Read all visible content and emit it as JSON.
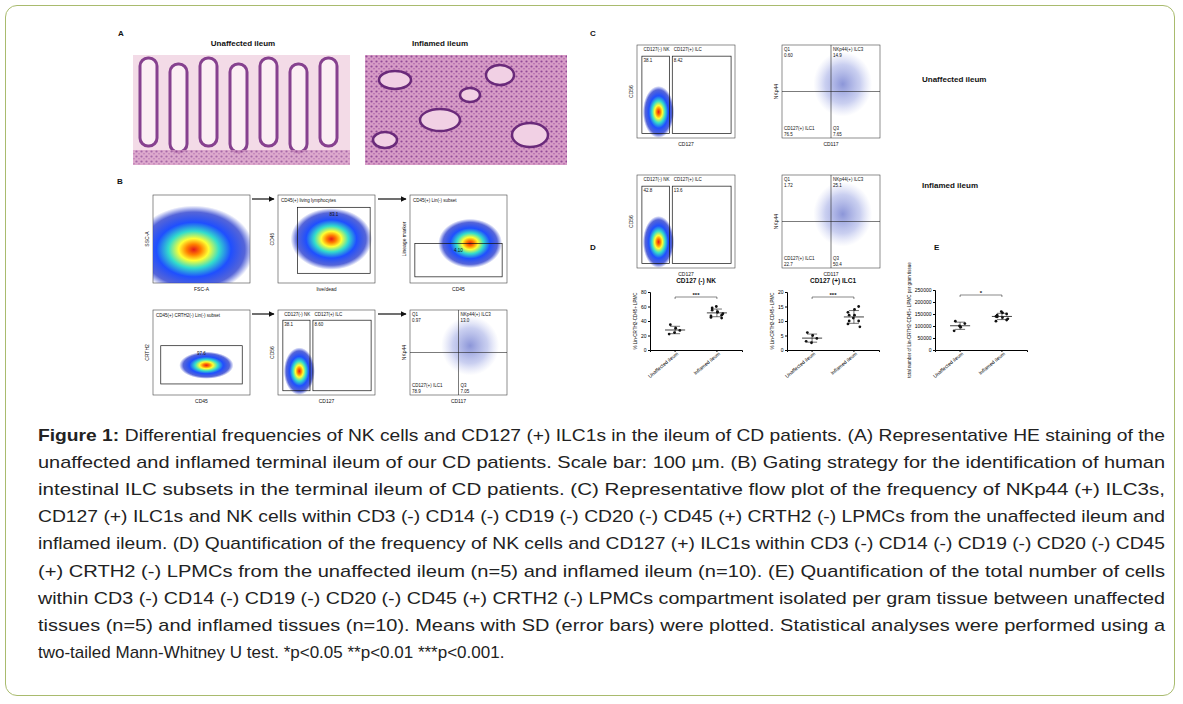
{
  "figure": {
    "caption": {
      "label": "Figure 1:",
      "lines": [
        "Differential frequencies of NK cells and CD127 (+) ILC1s in the ileum of CD patients. (A) Representative HE staining of the",
        "unaffected and inflamed terminal ileum of our CD patients. Scale bar: 100 µm. (B) Gating strategy for the identification of human",
        "intestinal ILC subsets in the terminal ileum of CD patients. (C) Representative flow plot of the frequency of NKp44 (+) ILC3s,",
        "CD127 (+) ILC1s and NK cells within CD3 (-) CD14 (-) CD19 (-) CD20 (-) CD45 (+) CRTH2 (-) LPMCs from the unaffected ileum and",
        "inflamed ileum. (D) Quantification of the frequency of NK cells and CD127 (+) ILC1s within CD3 (-) CD14 (-) CD19 (-) CD20 (-) CD45",
        "(+) CRTH2 (-) LPMCs from the unaffected ileum (n=5) and inflamed ileum (n=10). (E) Quantification of the total number of cells",
        "within CD3 (-) CD14 (-) CD19 (-) CD20 (-) CD45 (+) CRTH2 (-) LPMCs compartment isolated per gram tissue between unaffected",
        "tissues (n=5) and inflamed tissues (n=10). Means with SD (error bars) were plotted. Statistical analyses were performed using a",
        "two-tailed Mann-Whitney U test. *p<0.05 **p<0.01 ***p<0.001."
      ]
    },
    "panels": {
      "A": {
        "label": "A",
        "titles": [
          "Unaffected ileum",
          "Inflamed ileum"
        ]
      },
      "B": {
        "label": "B",
        "plots": [
          {
            "x_label": "FSC-A",
            "y_label": "SSC-A"
          },
          {
            "x_label": "live/dead",
            "y_label": "CD45",
            "gates": [
              {
                "name": "CD45(+) living lymphocytes",
                "value": "83.1"
              }
            ]
          },
          {
            "x_label": "CD45",
            "y_label": "Lineage marker",
            "gates": [
              {
                "name": "CD45(+) Lin(-) subset",
                "value": "4.10"
              }
            ]
          },
          {
            "x_label": "CD45",
            "y_label": "CRTH2",
            "gates": [
              {
                "name": "CD45(+) CRTH2(-) Lin(-) subset",
                "value": "97.6"
              }
            ]
          },
          {
            "x_label": "CD127",
            "y_label": "CD56",
            "gates": [
              {
                "name": "CD127(-) NK",
                "value": "38.1"
              },
              {
                "name": "CD127(+) ILC",
                "value": "8.60"
              }
            ]
          },
          {
            "x_label": "CD117",
            "y_label": "NKp44",
            "gates": [
              {
                "name": "Q1",
                "value": "0.97"
              },
              {
                "name": "NKp44(+) ILC3",
                "value": "13.0"
              },
              {
                "name": "CD127(+) ILC1",
                "value": "78.9"
              },
              {
                "name": "Q3",
                "value": "7.05"
              }
            ]
          }
        ]
      },
      "C": {
        "label": "C",
        "rows": [
          {
            "condition": "Unaffected ileum",
            "plots": [
              {
                "x_label": "CD127",
                "y_label": "CD56",
                "gates": [
                  {
                    "name": "CD127(-) NK",
                    "value": "38.1"
                  },
                  {
                    "name": "CD127(+) ILC",
                    "value": "8.42"
                  }
                ]
              },
              {
                "x_label": "CD117",
                "y_label": "NKp44",
                "gates": [
                  {
                    "name": "Q1",
                    "value": "0.60"
                  },
                  {
                    "name": "NKp44(+) ILC3",
                    "value": "14.9"
                  },
                  {
                    "name": "CD127(+) ILC1",
                    "value": "76.5"
                  },
                  {
                    "name": "Q3",
                    "value": "7.65"
                  }
                ]
              }
            ]
          },
          {
            "condition": "Inflamed ileum",
            "plots": [
              {
                "x_label": "CD127",
                "y_label": "CD56",
                "gates": [
                  {
                    "name": "CD127(-) NK",
                    "value": "42.8"
                  },
                  {
                    "name": "CD127(+) ILC",
                    "value": "13.6"
                  }
                ]
              },
              {
                "x_label": "CD117",
                "y_label": "NKp44",
                "gates": [
                  {
                    "name": "Q1",
                    "value": "1.72"
                  },
                  {
                    "name": "NKp44(+) ILC3",
                    "value": "25.1"
                  },
                  {
                    "name": "CD127(+) ILC1",
                    "value": "22.7"
                  },
                  {
                    "name": "Q3",
                    "value": "50.4"
                  }
                ]
              }
            ]
          }
        ]
      },
      "D": {
        "label": "D"
      },
      "E": {
        "label": "E"
      }
    }
  },
  "chart_data": [
    {
      "type": "scatter",
      "title": "CD127 (-) NK",
      "y_label": "% Lin-CRTH2-CD45+ LPMC",
      "categories": [
        "Unaffected ileum",
        "Inflamed ileum"
      ],
      "values": [
        [
          22,
          30,
          27,
          35,
          24
        ],
        [
          45,
          52,
          48,
          55,
          60,
          50,
          47,
          53,
          44,
          58
        ]
      ],
      "mean": [
        27.6,
        51.2
      ],
      "sd": [
        5.1,
        5.3
      ],
      "ylim": [
        0,
        80
      ],
      "yticks": [
        0,
        20,
        40,
        60,
        80
      ],
      "annotations": [
        "***"
      ],
      "marker": "circle",
      "color": "#111111"
    },
    {
      "type": "scatter",
      "title": "CD127 (+) ILC1",
      "y_label": "% Lin-CRTH2-CD45+ LPMC",
      "categories": [
        "Unaffected ileum",
        "Inflamed ileum"
      ],
      "values": [
        [
          3,
          5,
          4,
          6,
          2.5
        ],
        [
          9,
          12,
          15,
          10,
          11,
          8,
          13,
          14,
          10,
          12
        ]
      ],
      "mean": [
        4.1,
        11.4
      ],
      "sd": [
        1.4,
        2.2
      ],
      "ylim": [
        0,
        20
      ],
      "yticks": [
        0,
        5,
        10,
        15,
        20
      ],
      "annotations": [
        "***"
      ],
      "marker": "circle",
      "color": "#111111"
    },
    {
      "type": "scatter",
      "y_label": "total number of Lin-CRTH2-CD45+ LPMC per gram tissue",
      "categories": [
        "Unaffected ileum",
        "Inflamed ileum"
      ],
      "values": [
        [
          80000,
          95000,
          110000,
          120000,
          100000
        ],
        [
          120000,
          135000,
          150000,
          145000,
          160000,
          130000,
          140000,
          155000,
          125000,
          138000
        ]
      ],
      "mean": [
        101000,
        139800
      ],
      "sd": [
        15000,
        13000
      ],
      "ylim": [
        0,
        250000
      ],
      "yticks": [
        0,
        50000,
        100000,
        150000,
        200000,
        250000
      ],
      "annotations": [
        "*"
      ],
      "marker": "circle",
      "color": "#111111"
    }
  ]
}
